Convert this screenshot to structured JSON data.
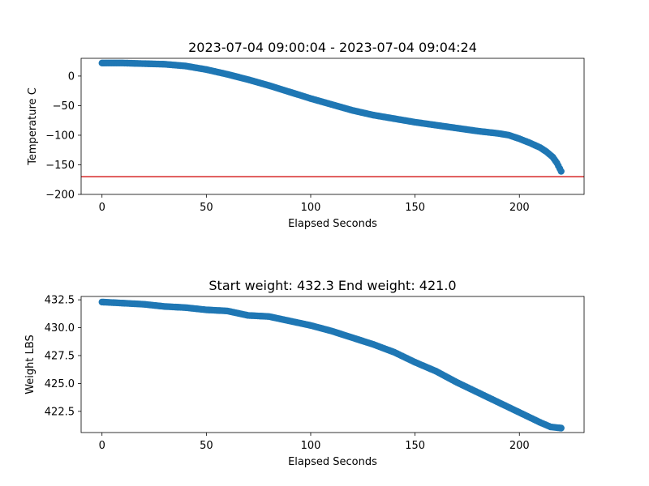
{
  "chart_data": [
    {
      "type": "scatter",
      "title": "2023-07-04 09:00:04 - 2023-07-04 09:04:24",
      "xlabel": "Elapsed Seconds",
      "ylabel": "Temperature C",
      "xlim": [
        -10,
        231
      ],
      "ylim": [
        -200,
        30
      ],
      "xticks": [
        0,
        50,
        100,
        150,
        200
      ],
      "yticks": [
        0,
        -50,
        -100,
        -150,
        -200
      ],
      "ytick_labels": [
        "0",
        "−50",
        "−100",
        "−150",
        "−200"
      ],
      "marker_color": "#1f77b4",
      "hline": {
        "y": -170,
        "color": "#d62728"
      },
      "series": [
        {
          "x": [
            0,
            10,
            20,
            30,
            40,
            50,
            60,
            70,
            80,
            90,
            100,
            110,
            120,
            130,
            140,
            150,
            160,
            170,
            180,
            190,
            195,
            200,
            205,
            210,
            213,
            216,
            218,
            220
          ],
          "y": [
            22,
            22,
            21,
            20,
            17,
            11,
            3,
            -6,
            -16,
            -27,
            -38,
            -48,
            -58,
            -66,
            -72,
            -78,
            -83,
            -88,
            -93,
            -97,
            -100,
            -106,
            -113,
            -121,
            -128,
            -137,
            -147,
            -161
          ]
        }
      ]
    },
    {
      "type": "scatter",
      "title": "Start weight: 432.3 End weight: 421.0",
      "xlabel": "Elapsed Seconds",
      "ylabel": "Weight LBS",
      "xlim": [
        -10,
        231
      ],
      "ylim": [
        420.6,
        432.8
      ],
      "xticks": [
        0,
        50,
        100,
        150,
        200
      ],
      "yticks": [
        432.5,
        430.0,
        427.5,
        425.0,
        422.5
      ],
      "ytick_labels": [
        "432.5",
        "430.0",
        "427.5",
        "425.0",
        "422.5"
      ],
      "marker_color": "#1f77b4",
      "series": [
        {
          "x": [
            0,
            10,
            20,
            30,
            40,
            50,
            60,
            70,
            80,
            90,
            100,
            110,
            120,
            130,
            140,
            150,
            160,
            170,
            180,
            190,
            200,
            210,
            215,
            220
          ],
          "y": [
            432.3,
            432.2,
            432.1,
            431.9,
            431.8,
            431.6,
            431.5,
            431.1,
            431.0,
            430.6,
            430.2,
            429.7,
            429.1,
            428.5,
            427.8,
            426.9,
            426.1,
            425.1,
            424.2,
            423.3,
            422.4,
            421.5,
            421.1,
            421.0
          ]
        }
      ]
    }
  ]
}
